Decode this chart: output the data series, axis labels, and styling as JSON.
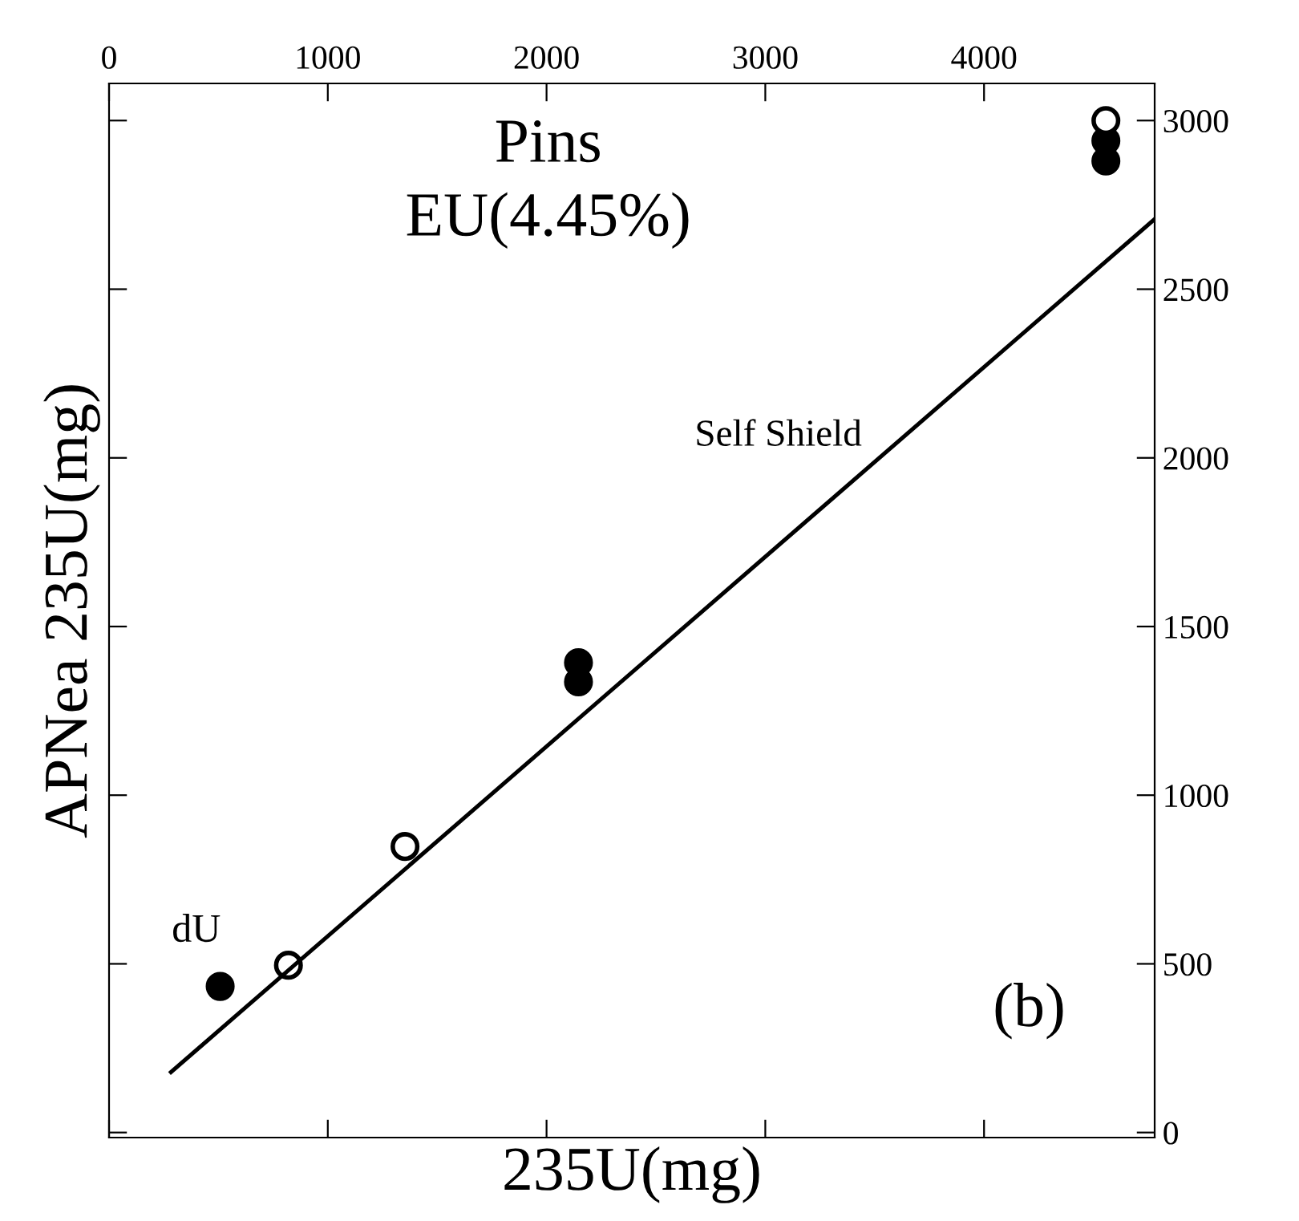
{
  "chart_data": {
    "type": "scatter",
    "xlabel": "235U(mg)",
    "ylabel": "APNea 235U(mg)",
    "xlim": [
      0,
      4780
    ],
    "xticks": [
      0,
      1000,
      2000,
      3000,
      4000
    ],
    "ylim": [
      -15,
      3110
    ],
    "yticks": [
      0,
      500,
      1000,
      1500,
      2000,
      2500,
      3000
    ],
    "series": [
      {
        "color": "#000000",
        "marker": "circle",
        "x": [
          508,
          2146,
          2146,
          4557,
          4557
        ],
        "values": [
          433,
          1393,
          1336,
          2940,
          2880
        ]
      },
      {
        "color": "#ffffff",
        "marker": "circle",
        "x": [
          820,
          1353,
          4557
        ],
        "values": [
          496,
          848,
          3000
        ]
      },
      {
        "type": "line",
        "color": "#000000",
        "x": [
          283,
          4777
        ],
        "values": [
          179,
          2706
        ]
      }
    ],
    "grid": false,
    "legend": false,
    "annotations": [
      "Pins",
      "EU(4.45%)",
      "Self Shield",
      "dU",
      "(b)"
    ]
  }
}
